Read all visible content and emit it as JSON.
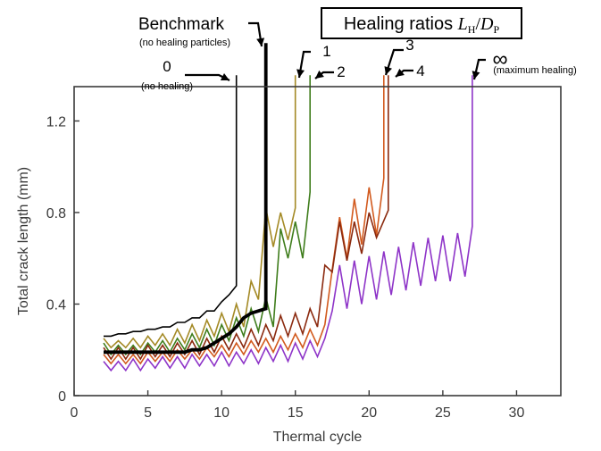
{
  "chart_data": {
    "type": "line",
    "xlabel": "Thermal cycle",
    "ylabel": "Total crack length (mm)",
    "xlim": [
      0,
      33
    ],
    "ylim": [
      0,
      1.35
    ],
    "xticks": [
      0,
      5,
      10,
      15,
      20,
      25,
      30
    ],
    "yticks": [
      0,
      0.4,
      0.8,
      1.2
    ],
    "ytick_labels": [
      "0",
      "0.4",
      "0.8",
      "1.2"
    ],
    "legend_title_prefix": "Healing ratios ",
    "legend_title_symbol": "L",
    "legend_title_sub1": "H",
    "legend_title_sep": "/",
    "legend_title_symbol2": "D",
    "legend_title_sub2": "P",
    "series": [
      {
        "label": "0",
        "note": "(no healing)",
        "color": "#000000",
        "width": 1.6,
        "fail_x": 11,
        "x": [
          2,
          2.5,
          3,
          3.5,
          4,
          4.5,
          5,
          5.5,
          6,
          6.5,
          7,
          7.5,
          8,
          8.5,
          9,
          9.5,
          10,
          10.5,
          11,
          11,
          11
        ],
        "y": [
          0.26,
          0.26,
          0.27,
          0.27,
          0.28,
          0.28,
          0.29,
          0.29,
          0.3,
          0.3,
          0.32,
          0.32,
          0.34,
          0.34,
          0.37,
          0.37,
          0.41,
          0.44,
          0.48,
          0.48,
          1.4
        ]
      },
      {
        "label": "Benchmark",
        "note": "(no healing particles)",
        "color": "#000000",
        "width": 3.8,
        "fail_x": 13,
        "x": [
          2,
          2.5,
          3,
          3.5,
          4,
          4.5,
          5,
          5.5,
          6,
          6.5,
          7,
          7.5,
          8,
          8.5,
          9,
          9.5,
          10,
          10.5,
          11,
          11.5,
          12,
          12.5,
          13,
          13,
          13
        ],
        "y": [
          0.19,
          0.19,
          0.19,
          0.19,
          0.19,
          0.19,
          0.19,
          0.19,
          0.19,
          0.19,
          0.19,
          0.19,
          0.2,
          0.2,
          0.21,
          0.23,
          0.25,
          0.27,
          0.3,
          0.34,
          0.36,
          0.37,
          0.38,
          0.38,
          1.54
        ]
      },
      {
        "label": "1",
        "note": "",
        "color": "#a48a26",
        "width": 1.6,
        "fail_x": 15,
        "x": [
          2,
          2.5,
          3,
          3.5,
          4,
          4.5,
          5,
          5.5,
          6,
          6.5,
          7,
          7.5,
          8,
          8.5,
          9,
          9.5,
          10,
          10.5,
          11,
          11.5,
          12,
          12.5,
          13,
          13.5,
          14,
          14.5,
          15,
          15,
          15
        ],
        "y": [
          0.25,
          0.21,
          0.24,
          0.21,
          0.25,
          0.21,
          0.26,
          0.22,
          0.27,
          0.22,
          0.29,
          0.23,
          0.31,
          0.24,
          0.33,
          0.26,
          0.36,
          0.28,
          0.4,
          0.3,
          0.5,
          0.42,
          0.82,
          0.65,
          0.8,
          0.68,
          0.82,
          0.82,
          1.4
        ]
      },
      {
        "label": "2",
        "note": "",
        "color": "#3f7d1c",
        "width": 1.6,
        "fail_x": 16,
        "x": [
          2,
          2.5,
          3,
          3.5,
          4,
          4.5,
          5,
          5.5,
          6,
          6.5,
          7,
          7.5,
          8,
          8.5,
          9,
          9.5,
          10,
          10.5,
          11,
          11.5,
          12,
          12.5,
          13,
          13.5,
          14,
          14.5,
          15,
          15.5,
          16,
          16,
          16
        ],
        "y": [
          0.23,
          0.18,
          0.22,
          0.18,
          0.22,
          0.18,
          0.23,
          0.19,
          0.24,
          0.19,
          0.25,
          0.2,
          0.27,
          0.21,
          0.29,
          0.22,
          0.31,
          0.24,
          0.34,
          0.26,
          0.38,
          0.28,
          0.43,
          0.3,
          0.73,
          0.6,
          0.76,
          0.6,
          0.89,
          0.89,
          1.4
        ]
      },
      {
        "label": "3",
        "note": "",
        "color": "#d25a1e",
        "width": 1.6,
        "fail_x": 21,
        "x": [
          2,
          2.5,
          3,
          3.5,
          4,
          4.5,
          5,
          5.5,
          6,
          6.5,
          7,
          7.5,
          8,
          8.5,
          9,
          9.5,
          10,
          10.5,
          11,
          11.5,
          12,
          12.5,
          13,
          13.5,
          14,
          14.5,
          15,
          15.5,
          16,
          16.5,
          17,
          17.5,
          18,
          18.5,
          19,
          19.5,
          20,
          20.5,
          21,
          21,
          21
        ],
        "y": [
          0.18,
          0.14,
          0.18,
          0.14,
          0.18,
          0.14,
          0.19,
          0.15,
          0.19,
          0.15,
          0.2,
          0.16,
          0.2,
          0.16,
          0.21,
          0.17,
          0.22,
          0.17,
          0.23,
          0.18,
          0.24,
          0.19,
          0.25,
          0.19,
          0.26,
          0.2,
          0.27,
          0.21,
          0.29,
          0.22,
          0.31,
          0.55,
          0.78,
          0.6,
          0.86,
          0.66,
          0.91,
          0.7,
          0.95,
          0.95,
          1.4
        ]
      },
      {
        "label": "4",
        "note": "",
        "color": "#8b2a0f",
        "width": 1.6,
        "fail_x": 21.3,
        "x": [
          2,
          2.5,
          3,
          3.5,
          4,
          4.5,
          5,
          5.5,
          6,
          6.5,
          7,
          7.5,
          8,
          8.5,
          9,
          9.5,
          10,
          10.5,
          11,
          11.5,
          12,
          12.5,
          13,
          13.5,
          14,
          14.5,
          15,
          15.5,
          16,
          16.5,
          17,
          17.5,
          18,
          18.5,
          19,
          19.5,
          20,
          20.5,
          21.3,
          21.3
        ],
        "y": [
          0.21,
          0.16,
          0.21,
          0.16,
          0.21,
          0.16,
          0.22,
          0.17,
          0.22,
          0.17,
          0.23,
          0.18,
          0.24,
          0.18,
          0.25,
          0.19,
          0.26,
          0.2,
          0.27,
          0.21,
          0.29,
          0.22,
          0.31,
          0.24,
          0.35,
          0.26,
          0.36,
          0.27,
          0.38,
          0.3,
          0.57,
          0.54,
          0.76,
          0.59,
          0.76,
          0.62,
          0.8,
          0.69,
          0.81,
          1.4
        ]
      },
      {
        "label": "∞",
        "note": "(maximum healing)",
        "color": "#8e34c8",
        "width": 1.6,
        "fail_x": 27,
        "x": [
          2,
          2.5,
          3,
          3.5,
          4,
          4.5,
          5,
          5.5,
          6,
          6.5,
          7,
          7.5,
          8,
          8.5,
          9,
          9.5,
          10,
          10.5,
          11,
          11.5,
          12,
          12.5,
          13,
          13.5,
          14,
          14.5,
          15,
          15.5,
          16,
          16.5,
          17,
          17.5,
          18,
          18.5,
          19,
          19.5,
          20,
          20.5,
          21,
          21.5,
          22,
          22.5,
          23,
          23.5,
          24,
          24.5,
          25,
          25.5,
          26,
          26.5,
          27,
          27,
          27
        ],
        "y": [
          0.15,
          0.11,
          0.15,
          0.11,
          0.16,
          0.11,
          0.16,
          0.12,
          0.17,
          0.12,
          0.17,
          0.12,
          0.18,
          0.13,
          0.18,
          0.13,
          0.19,
          0.13,
          0.19,
          0.14,
          0.2,
          0.14,
          0.21,
          0.15,
          0.22,
          0.15,
          0.23,
          0.16,
          0.24,
          0.17,
          0.25,
          0.37,
          0.57,
          0.38,
          0.59,
          0.4,
          0.61,
          0.42,
          0.63,
          0.44,
          0.65,
          0.46,
          0.67,
          0.48,
          0.69,
          0.5,
          0.7,
          0.5,
          0.71,
          0.52,
          0.74,
          0.74,
          1.4
        ]
      }
    ]
  }
}
